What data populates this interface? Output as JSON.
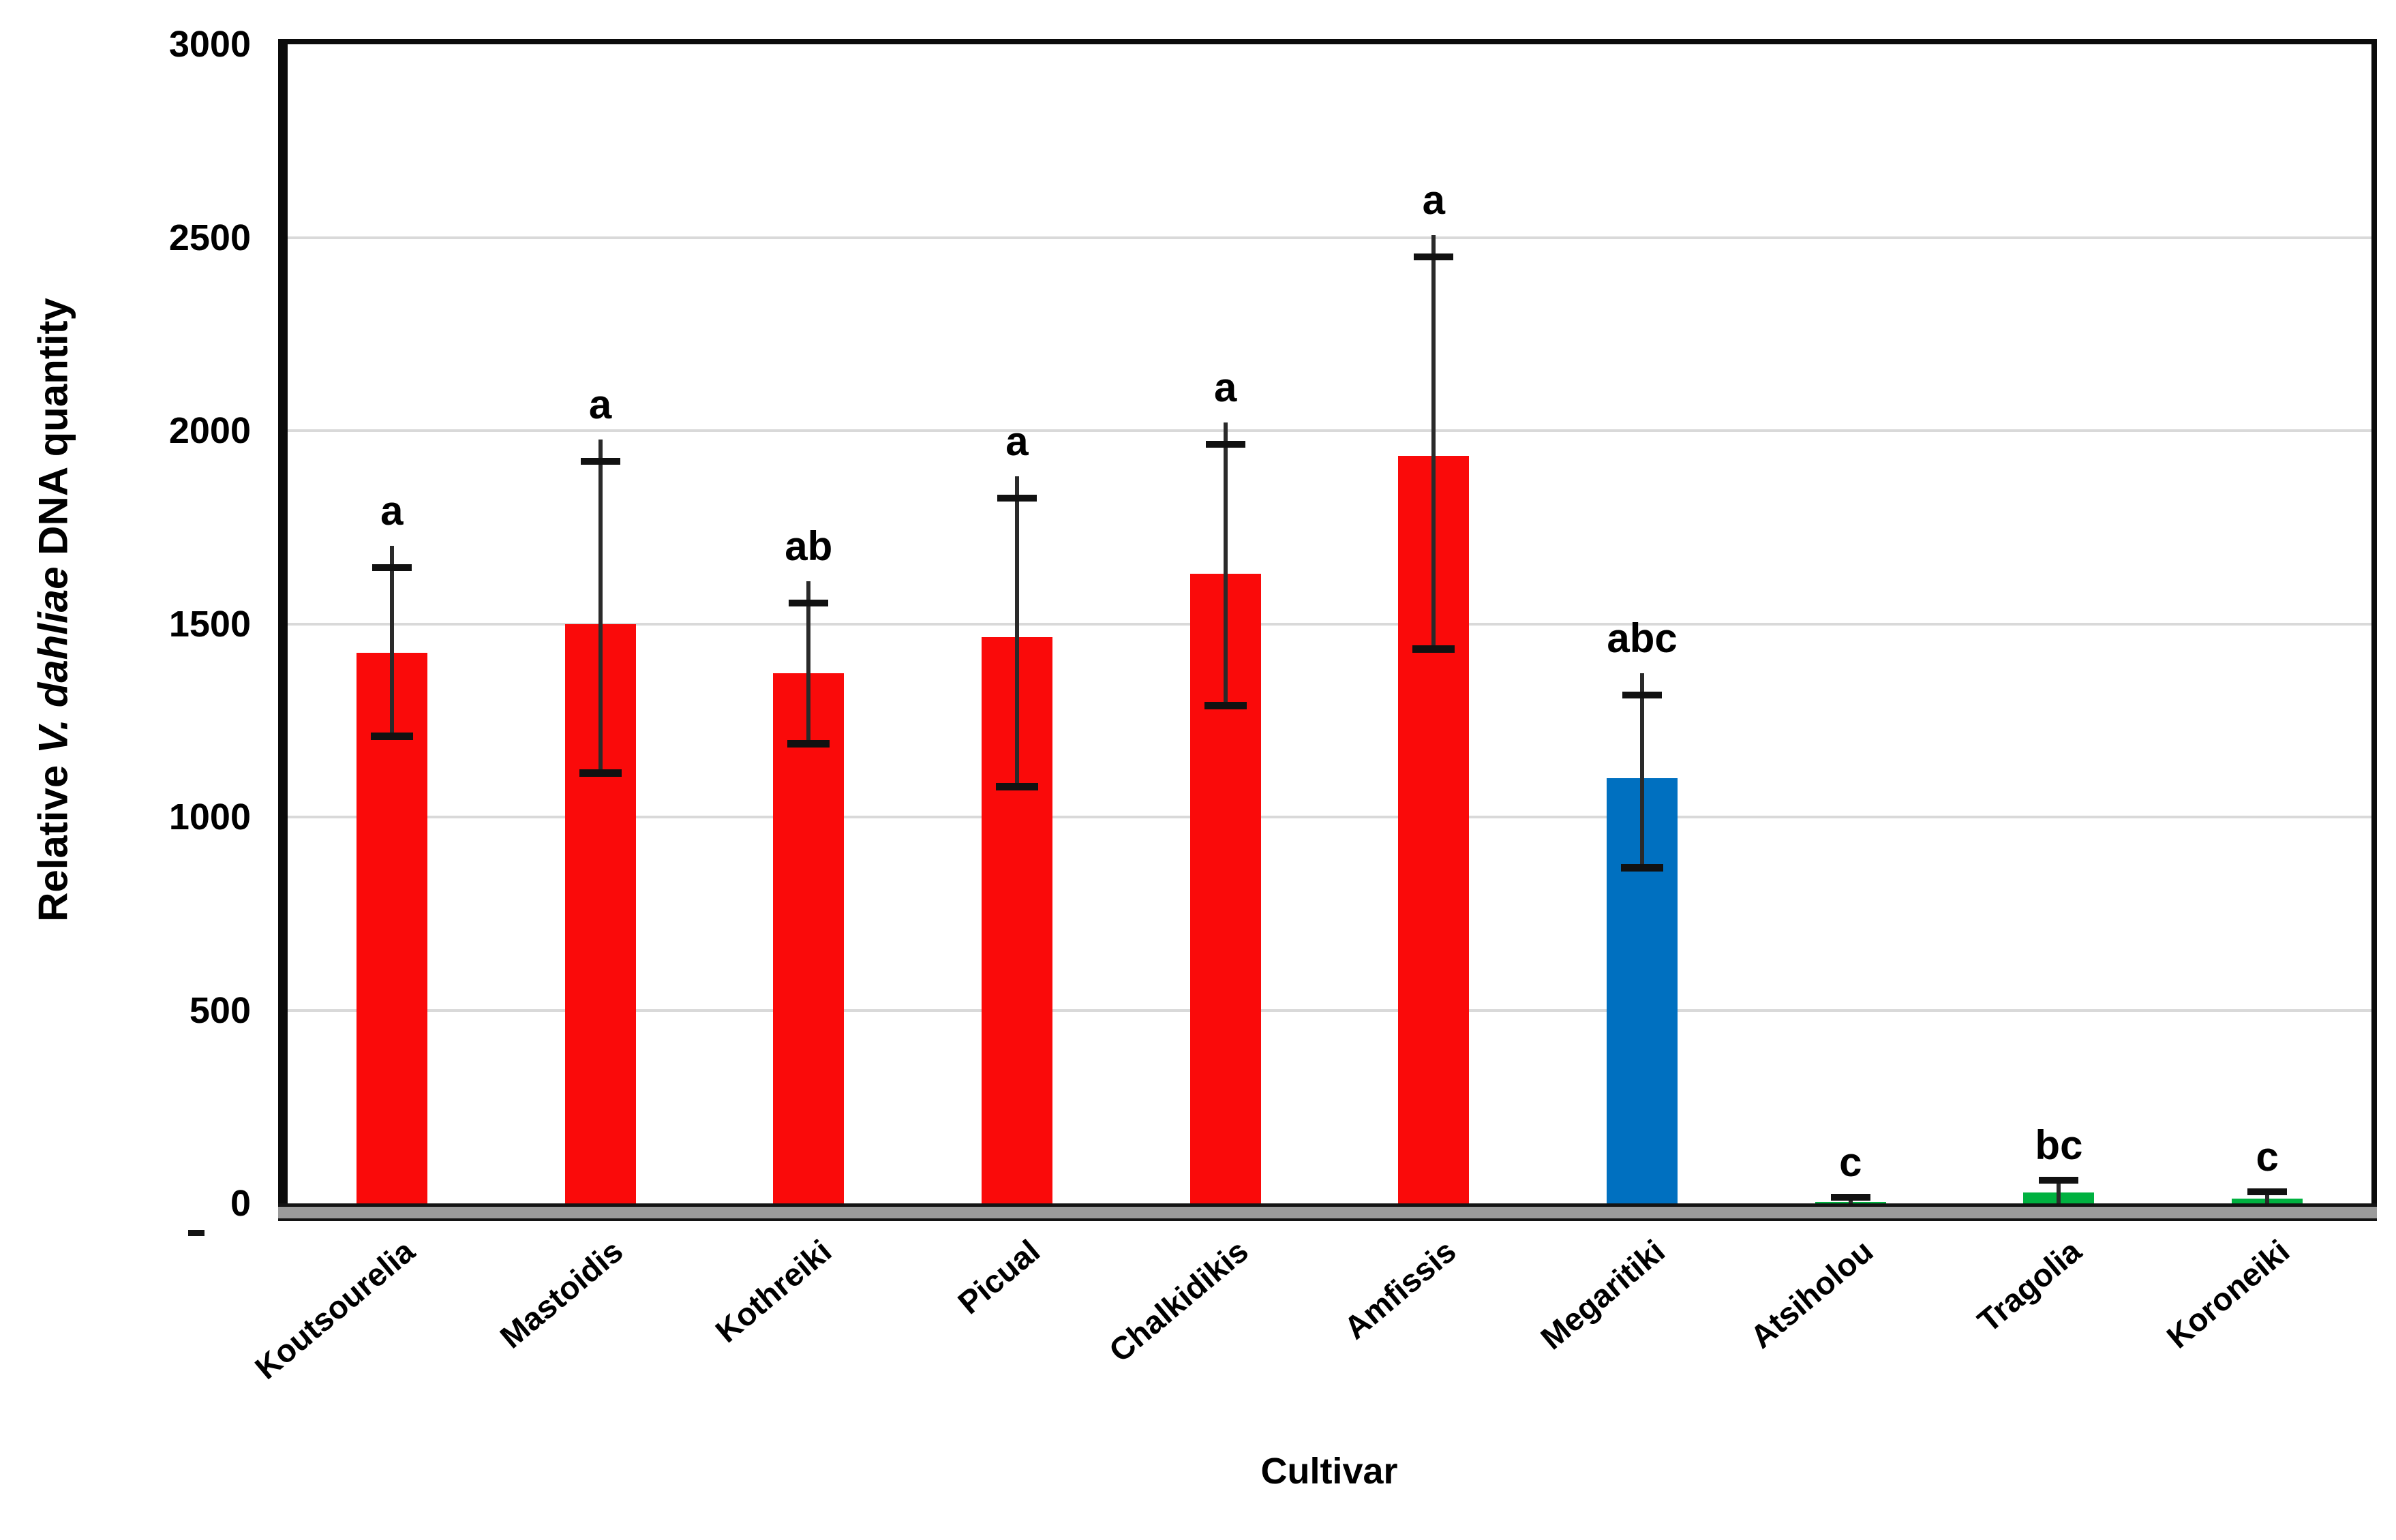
{
  "colors": {
    "red_bar": "#FA0A0A",
    "blue_bar": "#0070C0",
    "green_bar": "#00B140",
    "gridline": "#D9D9D9",
    "frame": "#0B0B0B",
    "axis_band": "#9B9B9B",
    "error_bar": "#1F1F1F",
    "text": "#000000",
    "background": "#FFFFFF"
  },
  "chart_data": {
    "type": "bar",
    "title": "",
    "xlabel": "Cultivar",
    "ylabel": "Relative V. dahliae DNA quantity",
    "ylabel_parts": {
      "prefix": "Relative ",
      "italic": "V. dahliae",
      "suffix": " DNA quantity"
    },
    "ylim": [
      0,
      3000
    ],
    "yticks": [
      0,
      500,
      1000,
      1500,
      2000,
      2500,
      3000
    ],
    "grid": "horizontal",
    "legend_position": "none",
    "categories": [
      "Koutsourelia",
      "Mastoidis",
      "Kothreiki",
      "Picual",
      "Chalkidikis",
      "Amfissis",
      "Megaritiki",
      "Atsiholou",
      "Tragolia",
      "Koroneiki"
    ],
    "values": [
      1425,
      1500,
      1372,
      1465,
      1630,
      1935,
      1100,
      4,
      28,
      13
    ],
    "error_low": [
      1210,
      1115,
      1190,
      1080,
      1290,
      1435,
      870,
      0,
      0,
      0
    ],
    "error_high": [
      1645,
      1920,
      1553,
      1825,
      1965,
      2450,
      1315,
      15,
      60,
      30
    ],
    "sig_letters": [
      "a",
      "a",
      "ab",
      "a",
      "a",
      "a",
      "abc",
      "c",
      "bc",
      "c"
    ],
    "bar_colors": [
      "#FA0A0A",
      "#FA0A0A",
      "#FA0A0A",
      "#FA0A0A",
      "#FA0A0A",
      "#FA0A0A",
      "#0070C0",
      "#00B140",
      "#00B140",
      "#00B140"
    ]
  }
}
